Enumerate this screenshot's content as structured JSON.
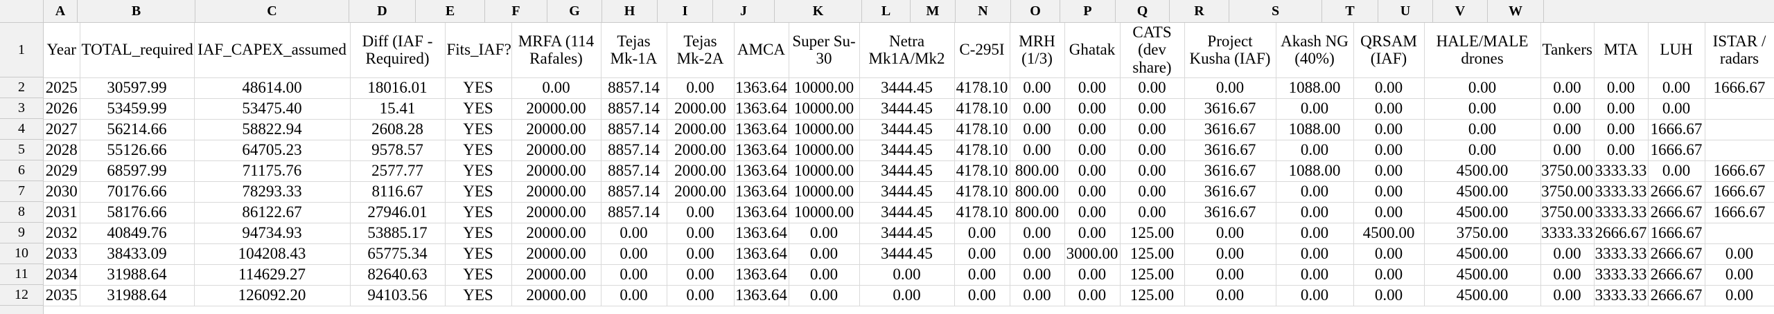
{
  "sheet": {
    "column_letters": [
      "A",
      "B",
      "C",
      "D",
      "E",
      "F",
      "G",
      "H",
      "I",
      "J",
      "K",
      "L",
      "M",
      "N",
      "O",
      "P",
      "Q",
      "R",
      "S",
      "T",
      "U",
      "V",
      "W"
    ],
    "row_numbers": [
      "1",
      "2",
      "3",
      "4",
      "5",
      "6",
      "7",
      "8",
      "9",
      "10",
      "11",
      "12"
    ],
    "columns": [
      "Year",
      "TOTAL_required",
      "IAF_CAPEX_assumed",
      "Diff (IAF - Required)",
      "Fits_IAF?",
      "MRFA (114 Rafales)",
      "Tejas Mk-1A",
      "Tejas Mk-2A",
      "AMCA",
      "Super Su-30",
      "Netra Mk1A/Mk2",
      "C-295I",
      "MRH (1/3)",
      "Ghatak",
      "CATS (dev share)",
      "Project Kusha (IAF)",
      "Akash NG (40%)",
      "QRSAM (IAF)",
      "HALE/MALE drones",
      "Tankers",
      "MTA",
      "LUH",
      "ISTAR / radars"
    ],
    "rows": [
      [
        "2025",
        "30597.99",
        "48614.00",
        "18016.01",
        "YES",
        "0.00",
        "8857.14",
        "0.00",
        "1363.64",
        "10000.00",
        "3444.45",
        "4178.10",
        "0.00",
        "0.00",
        "0.00",
        "0.00",
        "1088.00",
        "0.00",
        "0.00",
        "0.00",
        "0.00",
        "0.00",
        "1666.67"
      ],
      [
        "2026",
        "53459.99",
        "53475.40",
        "15.41",
        "YES",
        "20000.00",
        "8857.14",
        "2000.00",
        "1363.64",
        "10000.00",
        "3444.45",
        "4178.10",
        "0.00",
        "0.00",
        "0.00",
        "3616.67",
        "0.00",
        "0.00",
        "0.00",
        "0.00",
        "0.00",
        "0.00",
        ""
      ],
      [
        "2027",
        "56214.66",
        "58822.94",
        "2608.28",
        "YES",
        "20000.00",
        "8857.14",
        "2000.00",
        "1363.64",
        "10000.00",
        "3444.45",
        "4178.10",
        "0.00",
        "0.00",
        "0.00",
        "3616.67",
        "1088.00",
        "0.00",
        "0.00",
        "0.00",
        "0.00",
        "1666.67",
        ""
      ],
      [
        "2028",
        "55126.66",
        "64705.23",
        "9578.57",
        "YES",
        "20000.00",
        "8857.14",
        "2000.00",
        "1363.64",
        "10000.00",
        "3444.45",
        "4178.10",
        "0.00",
        "0.00",
        "0.00",
        "3616.67",
        "0.00",
        "0.00",
        "0.00",
        "0.00",
        "0.00",
        "1666.67",
        ""
      ],
      [
        "2029",
        "68597.99",
        "71175.76",
        "2577.77",
        "YES",
        "20000.00",
        "8857.14",
        "2000.00",
        "1363.64",
        "10000.00",
        "3444.45",
        "4178.10",
        "800.00",
        "0.00",
        "0.00",
        "3616.67",
        "1088.00",
        "0.00",
        "4500.00",
        "3750.00",
        "3333.33",
        "0.00",
        "1666.67"
      ],
      [
        "2030",
        "70176.66",
        "78293.33",
        "8116.67",
        "YES",
        "20000.00",
        "8857.14",
        "2000.00",
        "1363.64",
        "10000.00",
        "3444.45",
        "4178.10",
        "800.00",
        "0.00",
        "0.00",
        "3616.67",
        "0.00",
        "0.00",
        "4500.00",
        "3750.00",
        "3333.33",
        "2666.67",
        "1666.67"
      ],
      [
        "2031",
        "58176.66",
        "86122.67",
        "27946.01",
        "YES",
        "20000.00",
        "8857.14",
        "0.00",
        "1363.64",
        "10000.00",
        "3444.45",
        "4178.10",
        "800.00",
        "0.00",
        "0.00",
        "3616.67",
        "0.00",
        "0.00",
        "4500.00",
        "3750.00",
        "3333.33",
        "2666.67",
        "1666.67"
      ],
      [
        "2032",
        "40849.76",
        "94734.93",
        "53885.17",
        "YES",
        "20000.00",
        "0.00",
        "0.00",
        "1363.64",
        "0.00",
        "3444.45",
        "0.00",
        "0.00",
        "0.00",
        "125.00",
        "0.00",
        "0.00",
        "4500.00",
        "3750.00",
        "3333.33",
        "2666.67",
        "1666.67",
        ""
      ],
      [
        "2033",
        "38433.09",
        "104208.43",
        "65775.34",
        "YES",
        "20000.00",
        "0.00",
        "0.00",
        "1363.64",
        "0.00",
        "3444.45",
        "0.00",
        "0.00",
        "3000.00",
        "125.00",
        "0.00",
        "0.00",
        "0.00",
        "4500.00",
        "0.00",
        "3333.33",
        "2666.67",
        "0.00"
      ],
      [
        "2034",
        "31988.64",
        "114629.27",
        "82640.63",
        "YES",
        "20000.00",
        "0.00",
        "0.00",
        "1363.64",
        "0.00",
        "0.00",
        "0.00",
        "0.00",
        "0.00",
        "125.00",
        "0.00",
        "0.00",
        "0.00",
        "4500.00",
        "0.00",
        "3333.33",
        "2666.67",
        "0.00"
      ],
      [
        "2035",
        "31988.64",
        "126092.20",
        "94103.56",
        "YES",
        "20000.00",
        "0.00",
        "0.00",
        "1363.64",
        "0.00",
        "0.00",
        "0.00",
        "0.00",
        "0.00",
        "125.00",
        "0.00",
        "0.00",
        "0.00",
        "4500.00",
        "0.00",
        "3333.33",
        "2666.67",
        "0.00"
      ]
    ],
    "colors": {
      "strip_bg": "#f1f1f1",
      "strip_border": "#c9c9c9",
      "grid_line": "#d9d9d9",
      "text": "#000000",
      "background": "#ffffff"
    }
  }
}
